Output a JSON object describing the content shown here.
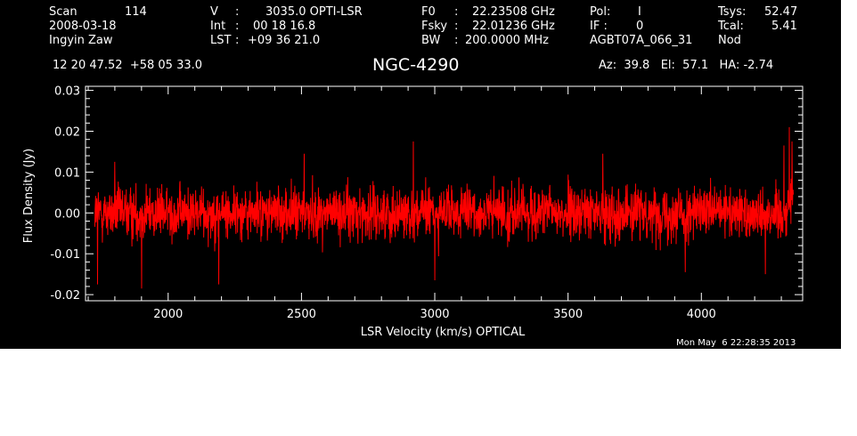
{
  "header": {
    "col1": {
      "scan_label": "Scan",
      "scan_value": "114",
      "date": "2008-03-18",
      "observer": "Ingyin Zaw"
    },
    "col2": {
      "v_label": "V",
      "v_sep": ":",
      "v_value": "3035.0 OPTI-LSR",
      "int_label": "Int",
      "int_sep": ":",
      "int_value": "00 18 16.8",
      "lst_label": "LST",
      "lst_sep": ":",
      "lst_value": "+09 36 21.0"
    },
    "col3": {
      "f0_label": "F0",
      "f0_sep": ":",
      "f0_value": "22.23508 GHz",
      "fsky_label": "Fsky",
      "fsky_sep": ":",
      "fsky_value": "22.01236 GHz",
      "bw_label": "BW",
      "bw_sep": ":",
      "bw_value": "200.0000 MHz"
    },
    "col4": {
      "pol_label": "Pol:",
      "pol_value": "I",
      "if_label": "IF :",
      "if_value": "0",
      "project": "AGBT07A_066_31"
    },
    "col5": {
      "tsys_label": "Tsys:",
      "tsys_value": "52.47",
      "tcal_label": "Tcal:",
      "tcal_value": "5.41",
      "mode": "Nod"
    },
    "coords": "12 20 47.52  +58 05 33.0",
    "pointing": "Az:  39.8   El:  57.1   HA: -2.74",
    "timestamp": "Mon May  6 22:28:35 2013"
  },
  "chart_data": {
    "type": "line",
    "title": "NGC-4290",
    "xlabel": "LSR Velocity (km/s) OPTICAL",
    "ylabel": "Flux Density (Jy)",
    "xlim": [
      1690,
      4380
    ],
    "ylim": [
      -0.0215,
      0.031
    ],
    "x_ticks": [
      2000,
      2500,
      3000,
      3500,
      4000
    ],
    "x_tick_labels": [
      "2000",
      "2500",
      "3000",
      "3500",
      "4000"
    ],
    "y_ticks": [
      -0.02,
      -0.01,
      0.0,
      0.01,
      0.02,
      0.03
    ],
    "y_tick_labels": [
      "-0.02",
      "-0.01",
      "0.00",
      "0.01",
      "0.02",
      "0.03"
    ],
    "grid": false,
    "series": [
      {
        "color": "#ff0000",
        "x_start": 1725,
        "x_end": 4345,
        "rms": 0.0042,
        "spikes": [
          {
            "x": 1735,
            "y": -0.0175
          },
          {
            "x": 1800,
            "y": 0.0125
          },
          {
            "x": 1900,
            "y": -0.0185
          },
          {
            "x": 2190,
            "y": -0.0175
          },
          {
            "x": 2510,
            "y": 0.0145
          },
          {
            "x": 2920,
            "y": 0.0175
          },
          {
            "x": 3000,
            "y": -0.0165
          },
          {
            "x": 3630,
            "y": 0.0145
          },
          {
            "x": 3940,
            "y": -0.0145
          },
          {
            "x": 4240,
            "y": -0.015
          },
          {
            "x": 4310,
            "y": 0.0165
          },
          {
            "x": 4330,
            "y": 0.021
          },
          {
            "x": 4340,
            "y": 0.0175
          }
        ]
      }
    ]
  }
}
